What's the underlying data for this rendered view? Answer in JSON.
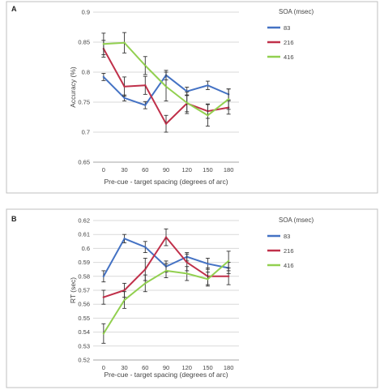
{
  "chart_data": [
    {
      "type": "line",
      "panel_label": "A",
      "title": "",
      "xlabel": "Pre-cue - target spacing (degrees of arc)",
      "ylabel": "Accuracy (%)",
      "x": [
        0,
        30,
        60,
        90,
        120,
        150,
        180
      ],
      "ylim": [
        0.65,
        0.9
      ],
      "yticks": [
        "0.65",
        "0.7",
        "0.75",
        "0.8",
        "0.85",
        "0.9"
      ],
      "grid": true,
      "legend_title": "SOA (msec)",
      "legend_position": "right",
      "series": [
        {
          "name": "83",
          "color": "#4472C4",
          "values": [
            0.792,
            0.757,
            0.745,
            0.795,
            0.768,
            0.778,
            0.763
          ],
          "errors": [
            0.006,
            0.005,
            0.006,
            0.008,
            0.007,
            0.007,
            0.009
          ]
        },
        {
          "name": "216",
          "color": "#C0304A",
          "values": [
            0.839,
            0.776,
            0.778,
            0.714,
            0.748,
            0.735,
            0.741
          ],
          "errors": [
            0.014,
            0.016,
            0.015,
            0.014,
            0.014,
            0.012,
            0.011
          ]
        },
        {
          "name": "416",
          "color": "#92D050",
          "values": [
            0.847,
            0.849,
            0.811,
            0.776,
            0.749,
            0.728,
            0.755
          ],
          "errors": [
            0.018,
            0.017,
            0.015,
            0.024,
            0.018,
            0.018,
            0.017
          ]
        }
      ]
    },
    {
      "type": "line",
      "panel_label": "B",
      "title": "",
      "xlabel": "Pre-cue - target spacing (degrees of arc)",
      "ylabel": "RT (sec)",
      "x": [
        0,
        30,
        60,
        90,
        120,
        150,
        180
      ],
      "ylim": [
        0.52,
        0.62
      ],
      "yticks": [
        "0.52",
        "0.53",
        "0.54",
        "0.55",
        "0.56",
        "0.57",
        "0.58",
        "0.59",
        "0.6",
        "0.61",
        "0.62"
      ],
      "grid": true,
      "legend_title": "SOA (msec)",
      "legend_position": "right",
      "series": [
        {
          "name": "83",
          "color": "#4472C4",
          "values": [
            0.58,
            0.607,
            0.601,
            0.587,
            0.594,
            0.589,
            0.586
          ],
          "errors": [
            0.004,
            0.003,
            0.004,
            0.004,
            0.003,
            0.004,
            0.004
          ]
        },
        {
          "name": "216",
          "color": "#C0304A",
          "values": [
            0.565,
            0.57,
            0.585,
            0.608,
            0.59,
            0.58,
            0.58
          ],
          "errors": [
            0.005,
            0.005,
            0.008,
            0.006,
            0.006,
            0.006,
            0.006
          ]
        },
        {
          "name": "416",
          "color": "#92D050",
          "values": [
            0.539,
            0.563,
            0.575,
            0.584,
            0.582,
            0.578,
            0.591
          ],
          "errors": [
            0.007,
            0.006,
            0.006,
            0.005,
            0.005,
            0.005,
            0.007
          ]
        }
      ]
    }
  ]
}
